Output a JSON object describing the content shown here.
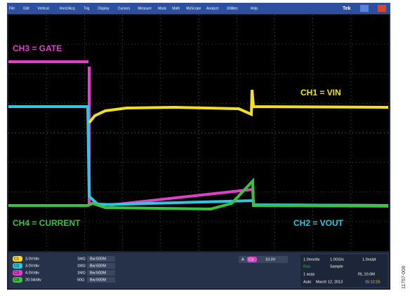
{
  "menu": [
    "File",
    "Edit",
    "Vertical",
    "Horiz/Acq",
    "Trig",
    "Display",
    "Cursors",
    "Measure",
    "Mask",
    "Math",
    "MyScope",
    "Analyze",
    "Utilities",
    "Help"
  ],
  "brand": "Tek",
  "trace_labels": {
    "ch3": "CH3 = GATE",
    "ch1": "CH1 = VIN",
    "ch4": "CH4 = CURRENT",
    "ch2": "CH2 = VOUT"
  },
  "channels": [
    {
      "id": "C1",
      "scale": "3.0V/div",
      "impedance": "1MΩ",
      "bw": "Bw:500M"
    },
    {
      "id": "C2",
      "scale": "3.0V/div",
      "impedance": "1MΩ",
      "bw": "Bw:500M"
    },
    {
      "id": "C3",
      "scale": "4.0V/div",
      "impedance": "1MΩ",
      "bw": "Bw:500M"
    },
    {
      "id": "C4",
      "scale": "20.0A/div",
      "impedance": "50Ω",
      "bw": "Bw:500M"
    }
  ],
  "trigger": {
    "mode": "A",
    "source": "C3",
    "level": "10.0V"
  },
  "status": {
    "timebase": "1.0ms/div",
    "rate": "1.0GS/s",
    "resolution": "1.0ns/pt",
    "state": "Run",
    "acq_mode": "Sample",
    "acqs": "1 acqs",
    "record": "RL:10.0M",
    "trig_mode": "Auto",
    "date": "March 12, 2013",
    "time": "15:12:15"
  },
  "figure_id": "11757-008"
}
